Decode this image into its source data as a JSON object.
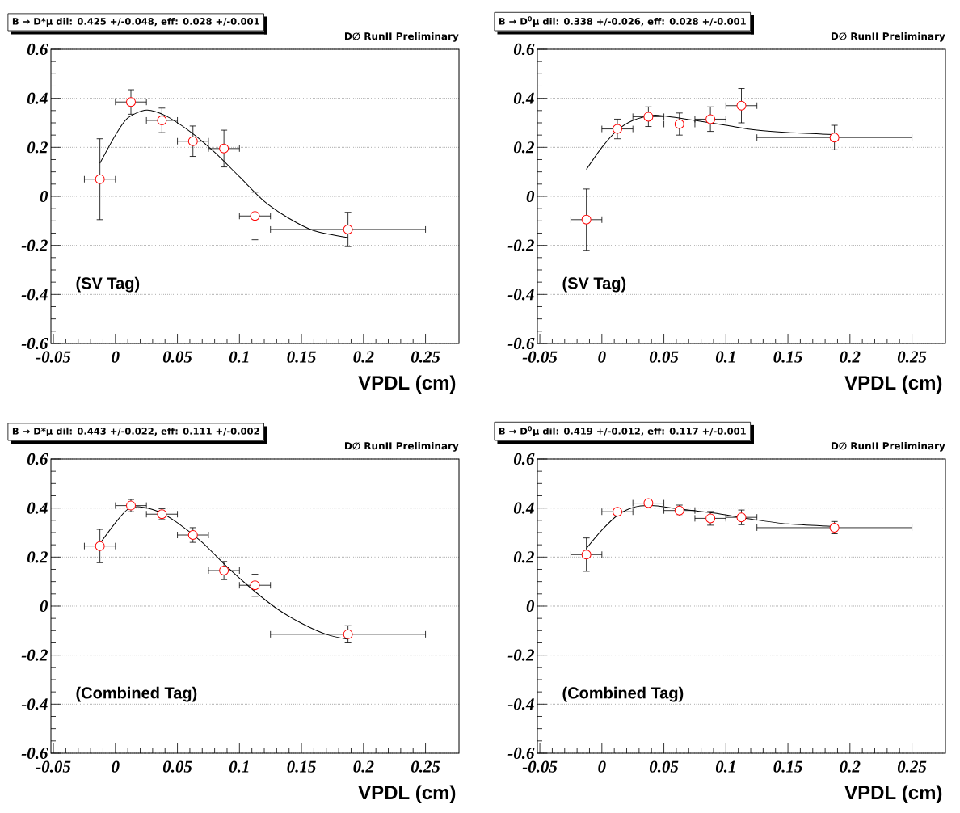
{
  "chart_data": [
    {
      "type": "scatter",
      "title": "B → D*μ dil: 0.425 +/-0.048, eff: 0.028 +/-0.001",
      "subtitle": "D∅ RunII Preliminary",
      "xlabel": "VPDL (cm)",
      "annotations": [
        "(SV Tag)"
      ],
      "xlim": [
        -0.052,
        0.277
      ],
      "ylim": [
        -0.6,
        0.6
      ],
      "xticks": [
        -0.05,
        0,
        0.05,
        0.1,
        0.15,
        0.2,
        0.25
      ],
      "yticks": [
        -0.6,
        -0.4,
        -0.2,
        0,
        0.2,
        0.4,
        0.6
      ],
      "grid": "y",
      "series": [
        {
          "type": "scatter",
          "marker": "circle",
          "color": "#ff0000",
          "x": [
            -0.0125,
            0.0125,
            0.0375,
            0.0625,
            0.0875,
            0.1125,
            0.1875
          ],
          "values": [
            0.07,
            0.385,
            0.31,
            0.225,
            0.195,
            -0.08,
            -0.135
          ],
          "errors": [
            0.165,
            0.05,
            0.05,
            0.062,
            0.075,
            0.097,
            0.07
          ],
          "xerrors": [
            0.0125,
            0.0125,
            0.0125,
            0.0125,
            0.0125,
            0.0125,
            0.0625
          ]
        },
        {
          "type": "line",
          "color": "#000000",
          "x": [
            -0.0125,
            0,
            0.01,
            0.025,
            0.04,
            0.06,
            0.08,
            0.1,
            0.12,
            0.14,
            0.16,
            0.1875
          ],
          "values": [
            0.135,
            0.25,
            0.32,
            0.352,
            0.33,
            0.265,
            0.18,
            0.08,
            -0.02,
            -0.09,
            -0.14,
            -0.168
          ]
        }
      ]
    },
    {
      "type": "scatter",
      "title": "B → D$^{0}$μ dil: 0.338 +/-0.026, eff: 0.028 +/-0.001",
      "subtitle": "D∅ RunII Preliminary",
      "xlabel": "VPDL (cm)",
      "annotations": [
        "(SV Tag)"
      ],
      "xlim": [
        -0.052,
        0.277
      ],
      "ylim": [
        -0.6,
        0.6
      ],
      "xticks": [
        -0.05,
        0,
        0.05,
        0.1,
        0.15,
        0.2,
        0.25
      ],
      "yticks": [
        -0.6,
        -0.4,
        -0.2,
        0,
        0.2,
        0.4,
        0.6
      ],
      "grid": "y",
      "series": [
        {
          "type": "scatter",
          "marker": "circle",
          "color": "#ff0000",
          "x": [
            -0.0125,
            0.0125,
            0.0375,
            0.0625,
            0.0875,
            0.1125,
            0.1875
          ],
          "values": [
            -0.095,
            0.275,
            0.325,
            0.295,
            0.315,
            0.37,
            0.24
          ],
          "errors": [
            0.125,
            0.04,
            0.04,
            0.045,
            0.05,
            0.07,
            0.05
          ],
          "xerrors": [
            0.0125,
            0.0125,
            0.0125,
            0.0125,
            0.0125,
            0.0125,
            0.0625
          ]
        },
        {
          "type": "line",
          "color": "#000000",
          "x": [
            -0.0125,
            0,
            0.0125,
            0.025,
            0.04,
            0.05,
            0.075,
            0.1,
            0.125,
            0.15,
            0.1875
          ],
          "values": [
            0.11,
            0.2,
            0.27,
            0.31,
            0.33,
            0.328,
            0.31,
            0.29,
            0.27,
            0.26,
            0.252
          ]
        }
      ]
    },
    {
      "type": "scatter",
      "title": "B → D*μ dil: 0.443 +/-0.022, eff: 0.111 +/-0.002",
      "subtitle": "D∅ RunII Preliminary",
      "xlabel": "VPDL (cm)",
      "annotations": [
        "(Combined Tag)"
      ],
      "xlim": [
        -0.052,
        0.277
      ],
      "ylim": [
        -0.6,
        0.6
      ],
      "xticks": [
        -0.05,
        0,
        0.05,
        0.1,
        0.15,
        0.2,
        0.25
      ],
      "yticks": [
        -0.6,
        -0.4,
        -0.2,
        0,
        0.2,
        0.4,
        0.6
      ],
      "grid": "y",
      "series": [
        {
          "type": "scatter",
          "marker": "circle",
          "color": "#ff0000",
          "x": [
            -0.0125,
            0.0125,
            0.0375,
            0.0625,
            0.0875,
            0.1125,
            0.1875
          ],
          "values": [
            0.245,
            0.41,
            0.375,
            0.29,
            0.145,
            0.085,
            -0.115
          ],
          "errors": [
            0.068,
            0.025,
            0.022,
            0.03,
            0.037,
            0.045,
            0.035
          ],
          "xerrors": [
            0.0125,
            0.0125,
            0.0125,
            0.0125,
            0.0125,
            0.0125,
            0.0625
          ]
        },
        {
          "type": "line",
          "color": "#000000",
          "x": [
            -0.0125,
            0,
            0.01,
            0.02,
            0.035,
            0.05,
            0.07,
            0.09,
            0.11,
            0.13,
            0.15,
            0.17,
            0.1875
          ],
          "values": [
            0.255,
            0.34,
            0.395,
            0.405,
            0.385,
            0.34,
            0.26,
            0.16,
            0.07,
            -0.01,
            -0.07,
            -0.115,
            -0.135
          ]
        }
      ]
    },
    {
      "type": "scatter",
      "title": "B → D$^{0}$μ dil: 0.419 +/-0.012, eff: 0.117 +/-0.001",
      "subtitle": "D∅ RunII Preliminary",
      "xlabel": "VPDL (cm)",
      "annotations": [
        "(Combined Tag)"
      ],
      "xlim": [
        -0.052,
        0.277
      ],
      "ylim": [
        -0.6,
        0.6
      ],
      "xticks": [
        -0.05,
        0,
        0.05,
        0.1,
        0.15,
        0.2,
        0.25
      ],
      "yticks": [
        -0.6,
        -0.4,
        -0.2,
        0,
        0.2,
        0.4,
        0.6
      ],
      "grid": "y",
      "series": [
        {
          "type": "scatter",
          "marker": "circle",
          "color": "#ff0000",
          "x": [
            -0.0125,
            0.0125,
            0.0375,
            0.0625,
            0.0875,
            0.1125,
            0.1875
          ],
          "values": [
            0.21,
            0.385,
            0.42,
            0.39,
            0.358,
            0.362,
            0.32
          ],
          "errors": [
            0.068,
            null,
            null,
            0.022,
            0.028,
            0.03,
            0.025
          ],
          "xerrors": [
            0.0125,
            0.0125,
            0.0125,
            0.0125,
            0.0125,
            0.0125,
            0.0625
          ]
        },
        {
          "type": "line",
          "color": "#000000",
          "x": [
            -0.0125,
            0,
            0.0125,
            0.025,
            0.04,
            0.06,
            0.09,
            0.12,
            0.15,
            0.1875
          ],
          "values": [
            0.235,
            0.31,
            0.37,
            0.402,
            0.41,
            0.398,
            0.38,
            0.355,
            0.335,
            0.325
          ]
        }
      ]
    }
  ]
}
